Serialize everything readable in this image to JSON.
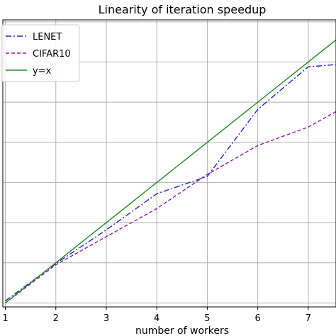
{
  "chart_data": {
    "type": "line",
    "title": "Linearity of iteration speedup",
    "xlabel": "number of workers",
    "ylabel": "",
    "xlim": [
      0.95,
      7.55
    ],
    "ylim": [
      0.9,
      8.05
    ],
    "x_ticks": [
      "1",
      "2",
      "3",
      "4",
      "5",
      "6",
      "7"
    ],
    "grid": true,
    "legend_position": "upper-left",
    "series": [
      {
        "name": "LENET",
        "style": "dashdot",
        "color": "#2222cc",
        "x": [
          1,
          2,
          3,
          4,
          5,
          6,
          7,
          7.6
        ],
        "y": [
          1.05,
          1.98,
          2.82,
          3.72,
          4.15,
          5.82,
          6.88,
          6.94
        ]
      },
      {
        "name": "CIFAR10",
        "style": "dashed",
        "color": "#8b1a9b",
        "x": [
          1,
          2,
          3,
          4,
          5,
          6,
          7,
          7.6
        ],
        "y": [
          1.0,
          1.95,
          2.65,
          3.35,
          4.2,
          4.92,
          5.38,
          5.8
        ]
      },
      {
        "name": "y=x",
        "style": "solid",
        "color": "#228b22",
        "x": [
          1,
          7.6
        ],
        "y": [
          1,
          7.6
        ]
      }
    ]
  }
}
